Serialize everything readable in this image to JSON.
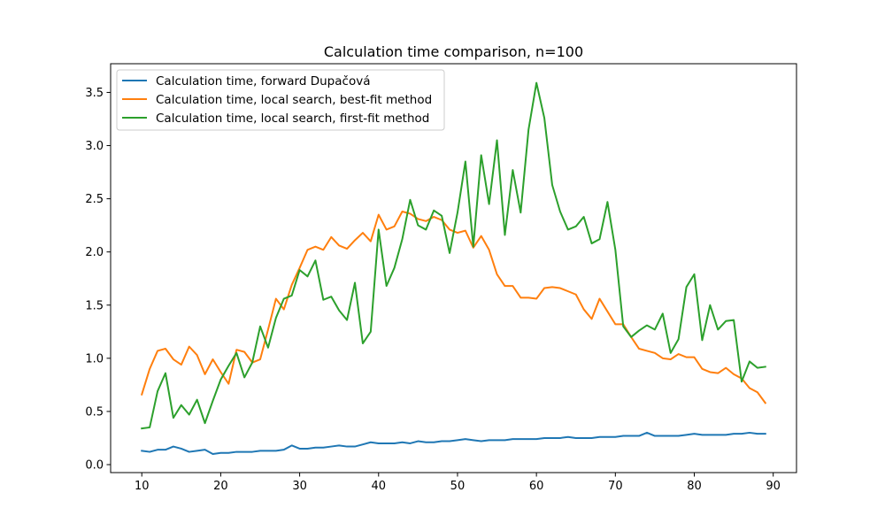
{
  "chart_data": {
    "type": "line",
    "title": "Calculation time comparison, n=100",
    "xlabel": "",
    "ylabel": "",
    "xlim": [
      6.05,
      92.95
    ],
    "ylim": [
      -0.075,
      3.77
    ],
    "xticks": [
      10,
      20,
      30,
      40,
      50,
      60,
      70,
      80,
      90
    ],
    "yticks": [
      0.0,
      0.5,
      1.0,
      1.5,
      2.0,
      2.5,
      3.0,
      3.5
    ],
    "xtick_labels": [
      "10",
      "20",
      "30",
      "40",
      "50",
      "60",
      "70",
      "80",
      "90"
    ],
    "ytick_labels": [
      "0.0",
      "0.5",
      "1.0",
      "1.5",
      "2.0",
      "2.5",
      "3.0",
      "3.5"
    ],
    "grid": false,
    "legend_position": "upper-left",
    "x": [
      10,
      11,
      12,
      13,
      14,
      15,
      16,
      17,
      18,
      19,
      20,
      21,
      22,
      23,
      24,
      25,
      26,
      27,
      28,
      29,
      30,
      31,
      32,
      33,
      34,
      35,
      36,
      37,
      38,
      39,
      40,
      41,
      42,
      43,
      44,
      45,
      46,
      47,
      48,
      49,
      50,
      51,
      52,
      53,
      54,
      55,
      56,
      57,
      58,
      59,
      60,
      61,
      62,
      63,
      64,
      65,
      66,
      67,
      68,
      69,
      70,
      71,
      72,
      73,
      74,
      75,
      76,
      77,
      78,
      79,
      80,
      81,
      82,
      83,
      84,
      85,
      86,
      87,
      88,
      89
    ],
    "series": [
      {
        "name": "Calculation time, forward Dupačová",
        "color": "#1f77b4",
        "values": [
          0.13,
          0.12,
          0.14,
          0.14,
          0.17,
          0.15,
          0.12,
          0.13,
          0.14,
          0.1,
          0.11,
          0.11,
          0.12,
          0.12,
          0.12,
          0.13,
          0.13,
          0.13,
          0.14,
          0.18,
          0.15,
          0.15,
          0.16,
          0.16,
          0.17,
          0.18,
          0.17,
          0.17,
          0.19,
          0.21,
          0.2,
          0.2,
          0.2,
          0.21,
          0.2,
          0.22,
          0.21,
          0.21,
          0.22,
          0.22,
          0.23,
          0.24,
          0.23,
          0.22,
          0.23,
          0.23,
          0.23,
          0.24,
          0.24,
          0.24,
          0.24,
          0.25,
          0.25,
          0.25,
          0.26,
          0.25,
          0.25,
          0.25,
          0.26,
          0.26,
          0.26,
          0.27,
          0.27,
          0.27,
          0.3,
          0.27,
          0.27,
          0.27,
          0.27,
          0.28,
          0.29,
          0.28,
          0.28,
          0.28,
          0.28,
          0.29,
          0.29,
          0.3,
          0.29,
          0.29
        ]
      },
      {
        "name": "Calculation time, local search, best-fit method",
        "color": "#ff7f0e",
        "values": [
          0.66,
          0.9,
          1.07,
          1.09,
          0.99,
          0.94,
          1.11,
          1.03,
          0.85,
          0.99,
          0.87,
          0.76,
          1.08,
          1.06,
          0.96,
          0.99,
          1.27,
          1.56,
          1.46,
          1.69,
          1.85,
          2.02,
          2.05,
          2.02,
          2.14,
          2.06,
          2.03,
          2.11,
          2.18,
          2.1,
          2.35,
          2.21,
          2.24,
          2.38,
          2.36,
          2.31,
          2.29,
          2.33,
          2.3,
          2.21,
          2.18,
          2.2,
          2.04,
          2.15,
          2.02,
          1.79,
          1.68,
          1.68,
          1.57,
          1.57,
          1.56,
          1.66,
          1.67,
          1.66,
          1.63,
          1.6,
          1.46,
          1.37,
          1.56,
          1.44,
          1.32,
          1.32,
          1.2,
          1.09,
          1.07,
          1.05,
          1.0,
          0.99,
          1.04,
          1.01,
          1.01,
          0.9,
          0.87,
          0.86,
          0.91,
          0.85,
          0.81,
          0.72,
          0.68,
          0.58
        ]
      },
      {
        "name": "Calculation time, local search, first-fit method",
        "color": "#2ca02c",
        "values": [
          0.34,
          0.35,
          0.69,
          0.86,
          0.44,
          0.56,
          0.47,
          0.61,
          0.39,
          0.6,
          0.8,
          0.93,
          1.05,
          0.82,
          0.96,
          1.3,
          1.1,
          1.38,
          1.56,
          1.59,
          1.83,
          1.77,
          1.92,
          1.55,
          1.58,
          1.45,
          1.36,
          1.71,
          1.14,
          1.25,
          2.21,
          1.68,
          1.85,
          2.12,
          2.49,
          2.25,
          2.21,
          2.39,
          2.34,
          1.99,
          2.37,
          2.85,
          2.05,
          2.91,
          2.45,
          3.05,
          2.16,
          2.77,
          2.37,
          3.15,
          3.59,
          3.26,
          2.63,
          2.38,
          2.21,
          2.24,
          2.33,
          2.08,
          2.12,
          2.47,
          2.02,
          1.3,
          1.2,
          1.26,
          1.31,
          1.27,
          1.42,
          1.05,
          1.18,
          1.67,
          1.79,
          1.17,
          1.5,
          1.27,
          1.35,
          1.36,
          0.78,
          0.97,
          0.91,
          0.92
        ]
      }
    ]
  }
}
